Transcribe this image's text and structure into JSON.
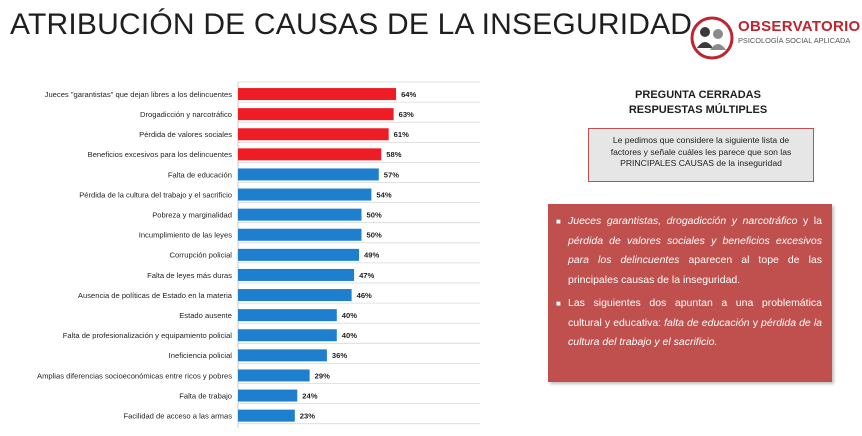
{
  "page": {
    "title": "ATRIBUCIÓN DE CAUSAS DE LA INSEGURIDAD"
  },
  "logo": {
    "brand": "OBSERVATORIO",
    "subtitle": "PSICOLOGÍA SOCIAL APLICADA"
  },
  "question": {
    "line1": "PREGUNTA CERRADAS",
    "line2": "RESPUESTAS MÚLTIPLES",
    "box_text": "Le pedimos que considere la siguiente lista de factores y señale cuáles les parece que son las PRINCIPALES CAUSAS de la inseguridad"
  },
  "findings": {
    "p1_italic": "Jueces garantistas, drogadicción y narcotráfico",
    "p1_t1": " y la ",
    "p1_italic2": "pérdida de valores sociales y beneficios excesivos para los delincuentes",
    "p1_t2": " aparecen al tope de las principales causas de la inseguridad.",
    "p2_t1": "Las siguientes dos apuntan a una problemática cultural y educativa: ",
    "p2_italic1": "falta de educación",
    "p2_t2": " y ",
    "p2_italic2": "pérdida de la cultura del trabajo y el sacrificio.",
    "bullet": "■"
  },
  "colors": {
    "highlight_bar": "#ee1c25",
    "bar": "#1f7fcf",
    "panel": "#c0504d",
    "logo": "#c0242e"
  },
  "chart_data": {
    "type": "bar",
    "orientation": "horizontal",
    "value_suffix": "%",
    "xlim": [
      0,
      100
    ],
    "grid": true,
    "categories": [
      "Jueces \"garantistas\" que dejan libres a los delincuentes",
      "Drogadicción y narcotráfico",
      "Pérdida de valores sociales",
      "Beneficios excesivos para los delincuentes",
      "Falta de educación",
      "Pérdida de la cultura del trabajo y el sacrificio",
      "Pobreza y marginalidad",
      "Incumplimiento de las leyes",
      "Corrupción policial",
      "Falta de leyes más duras",
      "Ausencia de políticas de Estado en la materia",
      "Estado ausente",
      "Falta de profesionalización y equipamiento policial",
      "Ineficiencia policial",
      "Amplias diferencias socioeconómicas entre ricos y pobres",
      "Falta de trabajo",
      "Facilidad de acceso a las armas"
    ],
    "values": [
      64,
      63,
      61,
      58,
      57,
      54,
      50,
      50,
      49,
      47,
      46,
      40,
      40,
      36,
      29,
      24,
      23
    ],
    "highlighted": [
      true,
      true,
      true,
      true,
      false,
      false,
      false,
      false,
      false,
      false,
      false,
      false,
      false,
      false,
      false,
      false,
      false
    ]
  }
}
